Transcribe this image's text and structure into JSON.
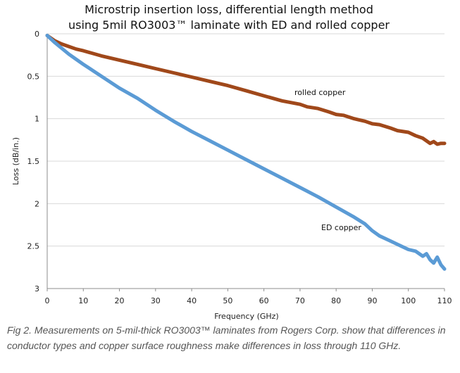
{
  "chart_data": {
    "type": "line",
    "title_lines": [
      "Microstrip insertion loss, differential length method",
      "using 5mil RO3003™ laminate with ED and rolled copper"
    ],
    "xlabel": "Frequency (GHz)",
    "ylabel": "Loss (dB/in.)",
    "xlim": [
      0,
      110
    ],
    "ylim": [
      0,
      3
    ],
    "y_axis_inverted": true,
    "x_ticks": [
      "0",
      "10",
      "20",
      "30",
      "40",
      "50",
      "60",
      "70",
      "80",
      "90",
      "100",
      "110"
    ],
    "y_ticks": [
      "0",
      "0.5",
      "1",
      "1.5",
      "2",
      "2.5",
      "3"
    ],
    "grid": "horizontal",
    "series": [
      {
        "name": "rolled copper",
        "color": "#a0481a",
        "x": [
          0,
          1,
          2,
          4,
          6,
          8,
          10,
          15,
          20,
          25,
          30,
          35,
          40,
          45,
          50,
          55,
          60,
          65,
          70,
          72,
          75,
          78,
          80,
          82,
          85,
          88,
          90,
          92,
          95,
          97,
          100,
          102,
          104,
          106,
          107,
          108,
          109,
          110
        ],
        "y": [
          0.02,
          0.05,
          0.08,
          0.12,
          0.15,
          0.18,
          0.2,
          0.26,
          0.31,
          0.36,
          0.41,
          0.46,
          0.51,
          0.56,
          0.61,
          0.67,
          0.73,
          0.79,
          0.83,
          0.86,
          0.88,
          0.92,
          0.95,
          0.96,
          1.0,
          1.03,
          1.06,
          1.07,
          1.11,
          1.14,
          1.16,
          1.2,
          1.23,
          1.29,
          1.27,
          1.3,
          1.29,
          1.29
        ]
      },
      {
        "name": "ED copper",
        "color": "#5b9bd5",
        "x": [
          0,
          2,
          4,
          6,
          8,
          10,
          15,
          20,
          25,
          30,
          35,
          40,
          45,
          50,
          55,
          60,
          65,
          70,
          75,
          80,
          85,
          88,
          90,
          92,
          95,
          97,
          100,
          102,
          104,
          105,
          106,
          107,
          108,
          109,
          110
        ],
        "y": [
          0.02,
          0.1,
          0.17,
          0.24,
          0.3,
          0.36,
          0.5,
          0.64,
          0.76,
          0.9,
          1.03,
          1.15,
          1.26,
          1.37,
          1.48,
          1.59,
          1.7,
          1.81,
          1.92,
          2.04,
          2.16,
          2.24,
          2.32,
          2.38,
          2.44,
          2.48,
          2.54,
          2.56,
          2.62,
          2.59,
          2.66,
          2.7,
          2.63,
          2.72,
          2.77
        ]
      }
    ]
  },
  "caption": "Fig 2. Measurements on 5-mil-thick RO3003™ laminates from Rogers Corp. show that differences in conductor types and copper surface roughness make differences in loss through 110 GHz."
}
